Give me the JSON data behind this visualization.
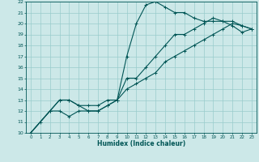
{
  "xlabel": "Humidex (Indice chaleur)",
  "xlim": [
    -0.5,
    23.5
  ],
  "ylim": [
    10,
    22
  ],
  "xticks": [
    0,
    1,
    2,
    3,
    4,
    5,
    6,
    7,
    8,
    9,
    10,
    11,
    12,
    13,
    14,
    15,
    16,
    17,
    18,
    19,
    20,
    21,
    22,
    23
  ],
  "yticks": [
    10,
    11,
    12,
    13,
    14,
    15,
    16,
    17,
    18,
    19,
    20,
    21,
    22
  ],
  "bg_color": "#cce8e8",
  "line_color": "#005555",
  "grid_color": "#99cccc",
  "line1_x": [
    0,
    1,
    2,
    3,
    4,
    5,
    6,
    7,
    8,
    9,
    10,
    11,
    12,
    13,
    14,
    15,
    16,
    17,
    18,
    19,
    20,
    21,
    22,
    23
  ],
  "line1_y": [
    10,
    11,
    12,
    12,
    11.5,
    12,
    12,
    12,
    12.5,
    13,
    17,
    20,
    21.7,
    22,
    21.5,
    21,
    21,
    20.5,
    20.2,
    20.2,
    20.2,
    19.8,
    19.2,
    19.5
  ],
  "line2_x": [
    0,
    2,
    3,
    4,
    5,
    6,
    7,
    8,
    9,
    10,
    11,
    12,
    13,
    14,
    15,
    16,
    17,
    18,
    19,
    20,
    21,
    22,
    23
  ],
  "line2_y": [
    10,
    12,
    13,
    13,
    12.5,
    12.5,
    12.5,
    13,
    13,
    15,
    15,
    16,
    17,
    18,
    19,
    19,
    19.5,
    20,
    20.5,
    20.2,
    20.2,
    19.8,
    19.5
  ],
  "line3_x": [
    0,
    2,
    3,
    4,
    5,
    6,
    7,
    8,
    9,
    10,
    11,
    12,
    13,
    14,
    15,
    16,
    17,
    18,
    19,
    20,
    21,
    22,
    23
  ],
  "line3_y": [
    10,
    12,
    13,
    13,
    12.5,
    12,
    12,
    12.5,
    13,
    14,
    14.5,
    15,
    15.5,
    16.5,
    17,
    17.5,
    18,
    18.5,
    19,
    19.5,
    20,
    19.8,
    19.5
  ]
}
